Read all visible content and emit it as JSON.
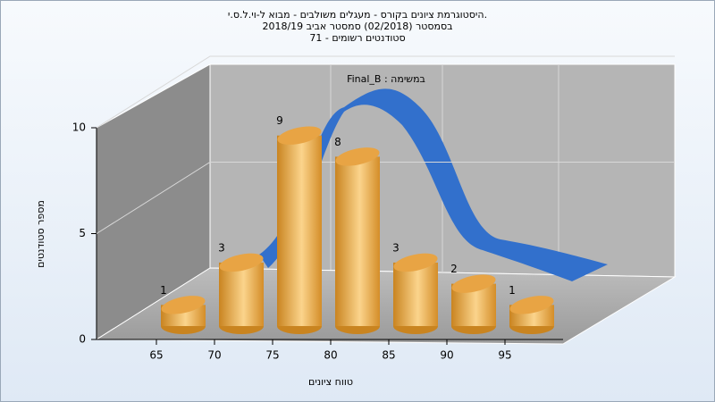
{
  "chart_data": {
    "type": "bar",
    "title": "היסטוגרמת ציונים בקורס - מעגלים משולבים - מבוא ל-וי.ל.ס.י.",
    "subtitle": "בסמסטר  (02/2018)  סמסטר אביב 2018/19",
    "subtitle2": "סטודנטים רשומים - 71",
    "annotation": "Final_B : במשימה",
    "x_label": "טווח ציונים",
    "y_label": "מספר סטודנטים",
    "categories": [
      "65",
      "70",
      "75",
      "80",
      "85",
      "90",
      "95"
    ],
    "values": [
      1,
      3,
      9,
      8,
      3,
      2,
      1
    ],
    "color": "#e8a444",
    "ylim": [
      0,
      10
    ],
    "yticks": [
      0,
      5,
      10
    ],
    "grid": true
  }
}
